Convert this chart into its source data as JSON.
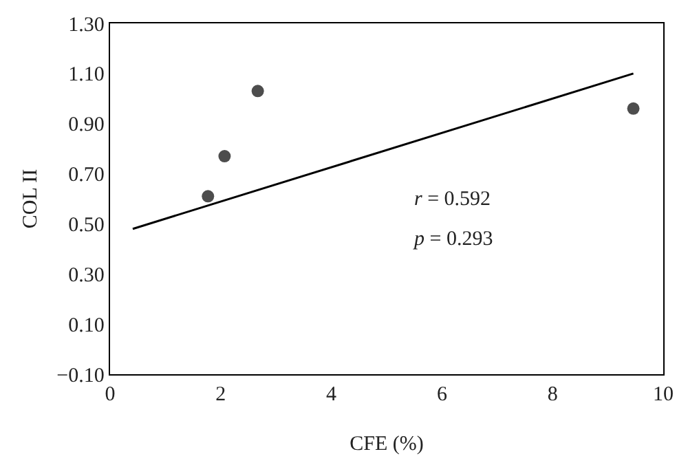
{
  "chart_data": {
    "type": "scatter",
    "xlabel": "CFE (%)",
    "ylabel": "COL II",
    "xlim": [
      0,
      10
    ],
    "xticks": [
      0,
      2,
      4,
      6,
      8,
      10
    ],
    "ylim": [
      -0.1,
      1.3
    ],
    "yticks": [
      {
        "value": -0.1,
        "label": "−0.10"
      },
      {
        "value": 0.1,
        "label": "0.10"
      },
      {
        "value": 0.3,
        "label": "0.30"
      },
      {
        "value": 0.5,
        "label": "0.50"
      },
      {
        "value": 0.7,
        "label": "0.70"
      },
      {
        "value": 0.9,
        "label": "0.90"
      },
      {
        "value": 1.1,
        "label": "1.10"
      },
      {
        "value": 1.3,
        "label": "1.30"
      }
    ],
    "series": [
      {
        "marker": "circle",
        "color": "#4d4d4d",
        "x": [
          1.77,
          2.07,
          2.67,
          9.46
        ],
        "values": [
          0.61,
          0.77,
          1.03,
          0.96
        ]
      },
      {
        "type": "line",
        "marker": "none",
        "color": "#000000",
        "x": [
          0.41,
          9.46
        ],
        "values": [
          0.48,
          1.1
        ]
      }
    ],
    "annotations": [
      "r = 0.592",
      "p = 0.293"
    ]
  }
}
